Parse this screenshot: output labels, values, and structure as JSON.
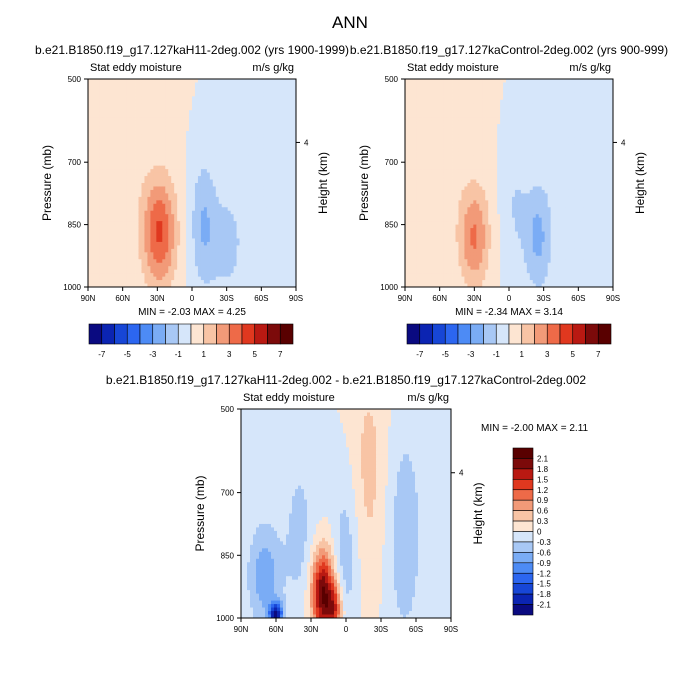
{
  "figure": {
    "title": "ANN",
    "colors": {
      "neutral": "#ffffff",
      "frame": "#000000"
    }
  },
  "chart_data": [
    {
      "type": "heatmap",
      "title": "b.e21.B1850.f19_g17.127kaH11-2deg.002 (yrs 1900-1999)",
      "left_label": "Stat eddy moisture",
      "right_label": "m/s g/kg",
      "xlabel": "",
      "ylabel": "Pressure (mb)",
      "y2label": "Height (km)",
      "xticks": [
        "90N",
        "60N",
        "30N",
        "0",
        "30S",
        "60S",
        "90S"
      ],
      "xlim": [
        90,
        -90
      ],
      "yticks": [
        "500",
        "700",
        "850",
        "1000"
      ],
      "ylim": [
        1000,
        500
      ],
      "y2ticks": [
        "4"
      ],
      "min_max_text": "MIN = -2.03 MAX = 4.25",
      "min": -2.03,
      "max": 4.25,
      "blobs": [
        {
          "lat": 28,
          "p": 870,
          "value": 4.0,
          "lat_spread": 10,
          "p_spread": 90
        },
        {
          "lat": -10,
          "p": 850,
          "value": -2.0,
          "lat_spread": 8,
          "p_spread": 110
        },
        {
          "lat": -30,
          "p": 900,
          "value": -1.2,
          "lat_spread": 10,
          "p_spread": 90
        },
        {
          "lat": 70,
          "p": 700,
          "value": 0.6,
          "lat_spread": 30,
          "p_spread": 250
        },
        {
          "lat": -60,
          "p": 700,
          "value": -0.6,
          "lat_spread": 20,
          "p_spread": 250
        }
      ]
    },
    {
      "type": "heatmap",
      "title": "b.e21.B1850.f19_g17.127kaControl-2deg.002 (yrs 900-999)",
      "left_label": "Stat eddy moisture",
      "right_label": "m/s g/kg",
      "xlabel": "",
      "ylabel": "Pressure (mb)",
      "y2label": "Height (km)",
      "xticks": [
        "90N",
        "60N",
        "30N",
        "0",
        "30S",
        "60S",
        "90S"
      ],
      "xlim": [
        90,
        -90
      ],
      "yticks": [
        "500",
        "700",
        "850",
        "1000"
      ],
      "ylim": [
        1000,
        500
      ],
      "y2ticks": [
        "4"
      ],
      "min_max_text": "MIN = -2.34 MAX = 3.14",
      "min": -2.34,
      "max": 3.14,
      "blobs": [
        {
          "lat": 30,
          "p": 880,
          "value": 3.0,
          "lat_spread": 9,
          "p_spread": 85
        },
        {
          "lat": -25,
          "p": 880,
          "value": -2.2,
          "lat_spread": 8,
          "p_spread": 90
        },
        {
          "lat": -5,
          "p": 800,
          "value": -1.0,
          "lat_spread": 8,
          "p_spread": 120
        },
        {
          "lat": 70,
          "p": 700,
          "value": 0.5,
          "lat_spread": 30,
          "p_spread": 250
        },
        {
          "lat": -60,
          "p": 700,
          "value": -0.6,
          "lat_spread": 20,
          "p_spread": 250
        }
      ]
    },
    {
      "type": "heatmap",
      "title": "b.e21.B1850.f19_g17.127kaH11-2deg.002 - b.e21.B1850.f19_g17.127kaControl-2deg.002",
      "left_label": "Stat eddy moisture",
      "right_label": "m/s g/kg",
      "xlabel": "",
      "ylabel": "Pressure (mb)",
      "y2label": "Height (km)",
      "xticks": [
        "90N",
        "60N",
        "30N",
        "0",
        "30S",
        "60S",
        "90S"
      ],
      "xlim": [
        90,
        -90
      ],
      "yticks": [
        "500",
        "700",
        "850",
        "1000"
      ],
      "ylim": [
        1000,
        500
      ],
      "y2ticks": [
        "4"
      ],
      "min_max_text": "MIN = -2.00 MAX = 2.11",
      "min": -2.0,
      "max": 2.11,
      "blobs": [
        {
          "lat": 20,
          "p": 940,
          "value": 2.1,
          "lat_spread": 7,
          "p_spread": 70
        },
        {
          "lat": 10,
          "p": 980,
          "value": 1.2,
          "lat_spread": 5,
          "p_spread": 40
        },
        {
          "lat": 60,
          "p": 990,
          "value": -2.0,
          "lat_spread": 4,
          "p_spread": 20
        },
        {
          "lat": 70,
          "p": 900,
          "value": -0.8,
          "lat_spread": 10,
          "p_spread": 90
        },
        {
          "lat": 40,
          "p": 800,
          "value": -0.4,
          "lat_spread": 10,
          "p_spread": 150
        },
        {
          "lat": 0,
          "p": 850,
          "value": -0.5,
          "lat_spread": 8,
          "p_spread": 150
        },
        {
          "lat": -20,
          "p": 650,
          "value": 0.4,
          "lat_spread": 12,
          "p_spread": 200
        },
        {
          "lat": -50,
          "p": 800,
          "value": -0.5,
          "lat_spread": 12,
          "p_spread": 200
        }
      ]
    }
  ],
  "colorbars": {
    "panels": {
      "levels": [
        -7,
        -6,
        -5,
        -4,
        -3,
        -2,
        -1,
        0,
        1,
        2,
        3,
        4,
        5,
        6,
        7
      ],
      "labels": [
        "-7",
        "-5",
        "-3",
        "-1",
        "1",
        "3",
        "5",
        "7"
      ],
      "colors": [
        "#0a0a80",
        "#0b24b2",
        "#1746d6",
        "#2c66f0",
        "#4d8bf5",
        "#7aacf5",
        "#a8c8f5",
        "#d6e6fa",
        "#fde5d2",
        "#f8c4a5",
        "#f29a78",
        "#ee6a48",
        "#e0381f",
        "#b91912",
        "#7c0a0a",
        "#590000"
      ]
    },
    "difference": {
      "levels": [
        -2.1,
        -1.8,
        -1.5,
        -1.2,
        -0.9,
        -0.6,
        -0.3,
        0,
        0.3,
        0.6,
        0.9,
        1.2,
        1.5,
        1.8,
        2.1
      ],
      "labels": [
        "-2.1",
        "-1.8",
        "-1.5",
        "-1.2",
        "-0.9",
        "-0.6",
        "-0.3",
        "0",
        "0.3",
        "0.6",
        "0.9",
        "1.2",
        "1.5",
        "1.8",
        "2.1"
      ],
      "colors": [
        "#0a0a80",
        "#0b24b2",
        "#1746d6",
        "#2c66f0",
        "#4d8bf5",
        "#7aacf5",
        "#a8c8f5",
        "#d6e6fa",
        "#fde5d2",
        "#f8c4a5",
        "#f29a78",
        "#ee6a48",
        "#e0381f",
        "#b91912",
        "#7c0a0a",
        "#590000"
      ]
    }
  }
}
